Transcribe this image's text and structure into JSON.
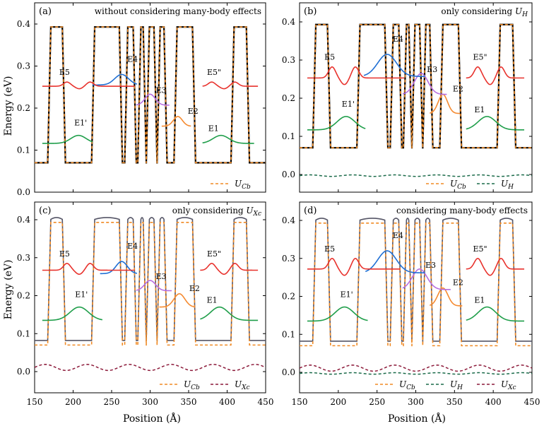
{
  "figure": {
    "ylabel": "Energy (eV)",
    "xlabel": "Position (Å)",
    "xticks": [
      "150",
      "200",
      "250",
      "300",
      "350",
      "400",
      "450"
    ],
    "yticks": [
      "0.0",
      "0.1",
      "0.2",
      "0.3",
      "0.4"
    ],
    "colors": {
      "frame": "#000000",
      "conduction_band": "#000000",
      "u_cb_dash": "#f08a24",
      "E5": "#e8322d",
      "E4": "#1f6fd4",
      "E3": "#b66de0",
      "E2": "#f58a30",
      "E1": "#1f9e4a",
      "u_h": "#1b6b4a",
      "u_xc": "#8c1a3a",
      "effective_band_grey": "#555566"
    }
  },
  "chart_data": [
    {
      "type": "line",
      "panel": "(a)",
      "title": "without considering many-body effects",
      "xlim": [
        150,
        450
      ],
      "ylim": [
        0.0,
        0.42
      ],
      "series": [
        {
          "name": "U_Cb",
          "kind": "band",
          "barrier": 0.393,
          "well": 0.07
        },
        {
          "name": "E1'",
          "kind": "state",
          "x": [
            160,
            225
          ],
          "center": 207,
          "baseline": 0.116,
          "peak": 0.135
        },
        {
          "name": "E1",
          "kind": "state",
          "x": [
            368,
            435
          ],
          "center": 392,
          "baseline": 0.116,
          "peak": 0.135
        },
        {
          "name": "E2",
          "kind": "state",
          "x": [
            315,
            353
          ],
          "center": 336,
          "baseline": 0.157,
          "peak": 0.18
        },
        {
          "name": "E3",
          "kind": "state",
          "x": [
            282,
            325
          ],
          "center": 300,
          "baseline": 0.207,
          "peak": 0.233
        },
        {
          "name": "E4",
          "kind": "state",
          "x": [
            225,
            283
          ],
          "center": 263,
          "baseline": 0.255,
          "peak": 0.28
        },
        {
          "name": "E5",
          "kind": "state",
          "x": [
            160,
            280
          ],
          "baseline": 0.252,
          "peak": 0.262
        },
        {
          "name": "E5\"",
          "kind": "state",
          "x": [
            368,
            440
          ],
          "baseline": 0.252,
          "peak": 0.262
        }
      ],
      "labels": [
        "E5",
        "E4",
        "E3",
        "E2",
        "E1'",
        "E1",
        "E5\""
      ],
      "legend": [
        {
          "label": "U",
          "sub": "Cb"
        }
      ]
    },
    {
      "type": "line",
      "panel": "(b)",
      "title_prefix": "only considering ",
      "title_symbol": {
        "label": "U",
        "sub": "H"
      },
      "xlim": [
        150,
        450
      ],
      "ylim": [
        -0.025,
        0.42
      ],
      "series": [
        {
          "name": "U_Cb",
          "kind": "band",
          "barrier": 0.393,
          "well": 0.07
        },
        {
          "name": "E1'",
          "kind": "state",
          "x": [
            160,
            235
          ],
          "center": 210,
          "baseline": 0.117,
          "peak": 0.152
        },
        {
          "name": "E1",
          "kind": "state",
          "x": [
            365,
            440
          ],
          "center": 392,
          "baseline": 0.117,
          "peak": 0.152
        },
        {
          "name": "E2",
          "kind": "state",
          "x": [
            318,
            357
          ],
          "center": 335,
          "baseline": 0.16,
          "peak": 0.21
        },
        {
          "name": "E3",
          "kind": "state",
          "x": [
            283,
            340
          ],
          "center": 307,
          "baseline": 0.21,
          "peak": 0.265
        },
        {
          "name": "E4",
          "kind": "state",
          "x": [
            233,
            312
          ],
          "center": 263,
          "baseline": 0.257,
          "peak": 0.315
        },
        {
          "name": "E5",
          "kind": "state",
          "x": [
            160,
            285
          ],
          "baseline": 0.253,
          "peak": 0.282
        },
        {
          "name": "E5\"",
          "kind": "state",
          "x": [
            365,
            440
          ],
          "baseline": 0.253,
          "peak": 0.282
        },
        {
          "name": "U_H",
          "kind": "potential",
          "baseline": -0.003,
          "amplitude": 0.002
        }
      ],
      "labels": [
        "E5",
        "E4",
        "E3",
        "E2",
        "E1'",
        "E1",
        "E5\""
      ],
      "legend": [
        {
          "label": "U",
          "sub": "Cb"
        },
        {
          "label": "U",
          "sub": "H"
        }
      ]
    },
    {
      "type": "line",
      "panel": "(c)",
      "title_prefix": "only considering ",
      "title_symbol": {
        "label": "U",
        "sub": "Xc"
      },
      "xlim": [
        150,
        450
      ],
      "ylim": [
        -0.025,
        0.42
      ],
      "series": [
        {
          "name": "U_Cb",
          "kind": "band",
          "barrier": 0.393,
          "well": 0.07
        },
        {
          "name": "E1'",
          "kind": "state",
          "x": [
            160,
            238
          ],
          "center": 208,
          "baseline": 0.135,
          "peak": 0.17
        },
        {
          "name": "E1",
          "kind": "state",
          "x": [
            365,
            440
          ],
          "center": 390,
          "baseline": 0.135,
          "peak": 0.17
        },
        {
          "name": "E2",
          "kind": "state",
          "x": [
            312,
            358
          ],
          "center": 338,
          "baseline": 0.17,
          "peak": 0.205
        },
        {
          "name": "E3",
          "kind": "state",
          "x": [
            282,
            328
          ],
          "center": 300,
          "baseline": 0.213,
          "peak": 0.24
        },
        {
          "name": "E4",
          "kind": "state",
          "x": [
            235,
            283
          ],
          "center": 263,
          "baseline": 0.258,
          "peak": 0.29
        },
        {
          "name": "E5",
          "kind": "state",
          "x": [
            160,
            280
          ],
          "baseline": 0.267,
          "peak": 0.285
        },
        {
          "name": "E5\"",
          "kind": "state",
          "x": [
            365,
            440
          ],
          "baseline": 0.267,
          "peak": 0.285
        },
        {
          "name": "U_Xc",
          "kind": "potential",
          "baseline": 0.011,
          "amplitude": 0.008
        }
      ],
      "labels": [
        "E5",
        "E4",
        "E3",
        "E2",
        "E1'",
        "E1",
        "E5\""
      ],
      "legend": [
        {
          "label": "U",
          "sub": "Cb"
        },
        {
          "label": "U",
          "sub": "Xc"
        }
      ]
    },
    {
      "type": "line",
      "panel": "(d)",
      "title": "considering many-body effects",
      "xlim": [
        150,
        450
      ],
      "ylim": [
        -0.025,
        0.42
      ],
      "series": [
        {
          "name": "U_Cb",
          "kind": "band",
          "barrier": 0.393,
          "well": 0.07
        },
        {
          "name": "E1'",
          "kind": "state",
          "x": [
            160,
            238
          ],
          "center": 208,
          "baseline": 0.135,
          "peak": 0.172
        },
        {
          "name": "E1",
          "kind": "state",
          "x": [
            365,
            440
          ],
          "center": 392,
          "baseline": 0.135,
          "peak": 0.172
        },
        {
          "name": "E2",
          "kind": "state",
          "x": [
            318,
            360
          ],
          "center": 335,
          "baseline": 0.175,
          "peak": 0.222
        },
        {
          "name": "E3",
          "kind": "state",
          "x": [
            283,
            345
          ],
          "center": 305,
          "baseline": 0.218,
          "peak": 0.272
        },
        {
          "name": "E4",
          "kind": "state",
          "x": [
            235,
            312
          ],
          "center": 263,
          "baseline": 0.262,
          "peak": 0.32
        },
        {
          "name": "E5",
          "kind": "state",
          "x": [
            160,
            280
          ],
          "baseline": 0.272,
          "peak": 0.3
        },
        {
          "name": "E5\"",
          "kind": "state",
          "x": [
            365,
            440
          ],
          "baseline": 0.272,
          "peak": 0.3
        },
        {
          "name": "U_H",
          "kind": "potential",
          "baseline": -0.003,
          "amplitude": 0.002
        },
        {
          "name": "U_Xc",
          "kind": "potential",
          "baseline": 0.011,
          "amplitude": 0.008
        }
      ],
      "labels": [
        "E5",
        "E4",
        "E3",
        "E2",
        "E1'",
        "E1",
        "E5\""
      ],
      "legend": [
        {
          "label": "U",
          "sub": "Cb"
        },
        {
          "label": "U",
          "sub": "H"
        },
        {
          "label": "U",
          "sub": "Xc"
        }
      ]
    }
  ]
}
